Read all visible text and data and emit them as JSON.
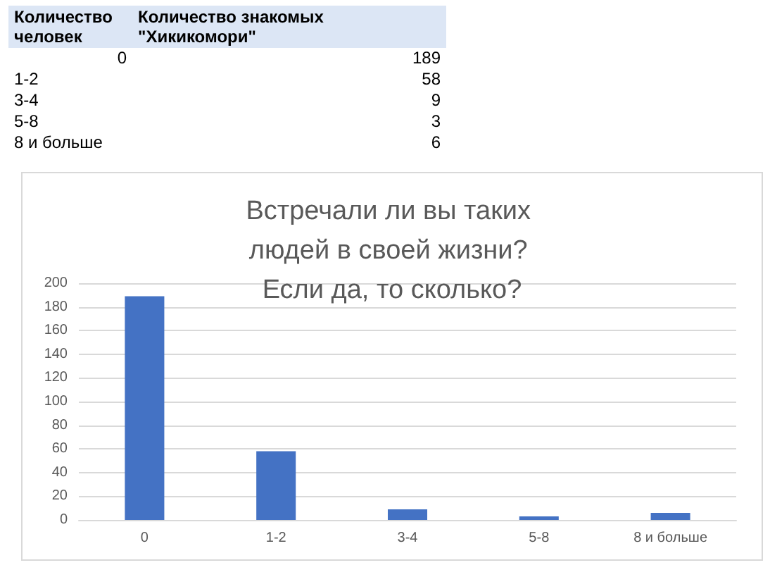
{
  "chart_data": [
    {
      "type": "other",
      "annotations": [
        "Количество человек",
        "Количество знакомых \"Хикикомори\""
      ],
      "categories": [
        "0",
        "1-2",
        "3-4",
        "5-8",
        "8 и больше"
      ],
      "values": [
        189,
        58,
        9,
        3,
        6
      ],
      "data_labels": true
    },
    {
      "type": "bar",
      "title": "Встречали ли вы таких людей в своей жизни? Если да, то сколько?",
      "categories": [
        "0",
        "1-2",
        "3-4",
        "5-8",
        "8 и больше"
      ],
      "values": [
        189,
        58,
        9,
        3,
        6
      ],
      "color": "#4472c4",
      "ylim": [
        0,
        200
      ],
      "yticks": [
        0,
        20,
        40,
        60,
        80,
        100,
        120,
        140,
        160,
        180,
        200
      ],
      "grid": "y"
    }
  ]
}
